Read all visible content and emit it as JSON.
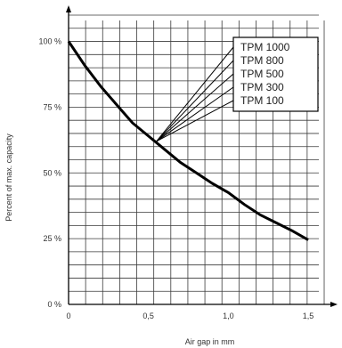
{
  "chart_data": {
    "type": "line",
    "xlabel": "Air gap in mm",
    "ylabel": "Percent of max. capacity",
    "xlim": [
      0,
      1.6
    ],
    "ylim": [
      0,
      110
    ],
    "x_ticks": [
      {
        "value": 0,
        "label": "0"
      },
      {
        "value": 0.5,
        "label": "0,5"
      },
      {
        "value": 1.0,
        "label": "1,0"
      },
      {
        "value": 1.5,
        "label": "1,5"
      }
    ],
    "y_ticks": [
      {
        "value": 0,
        "label": "0 %"
      },
      {
        "value": 25,
        "label": "25 %"
      },
      {
        "value": 50,
        "label": "50 %"
      },
      {
        "value": 75,
        "label": "75 %"
      },
      {
        "value": 100,
        "label": "100 %"
      }
    ],
    "grid": true,
    "legend": {
      "placement": "top-right",
      "entries": [
        "TPM 1000",
        "TPM 800",
        "TPM 500",
        "TPM 300",
        "TPM 100"
      ],
      "points_to": {
        "x": 0.55,
        "y": 62
      }
    },
    "series": [
      {
        "x": [
          0,
          0.1,
          0.2,
          0.3,
          0.4,
          0.5,
          0.6,
          0.7,
          0.8,
          0.9,
          1.0,
          1.1,
          1.2,
          1.3,
          1.4,
          1.5
        ],
        "values": [
          100,
          91,
          83,
          76,
          69,
          64,
          59,
          54,
          50,
          46,
          42.5,
          38,
          34,
          31,
          28,
          24.5
        ]
      }
    ]
  }
}
